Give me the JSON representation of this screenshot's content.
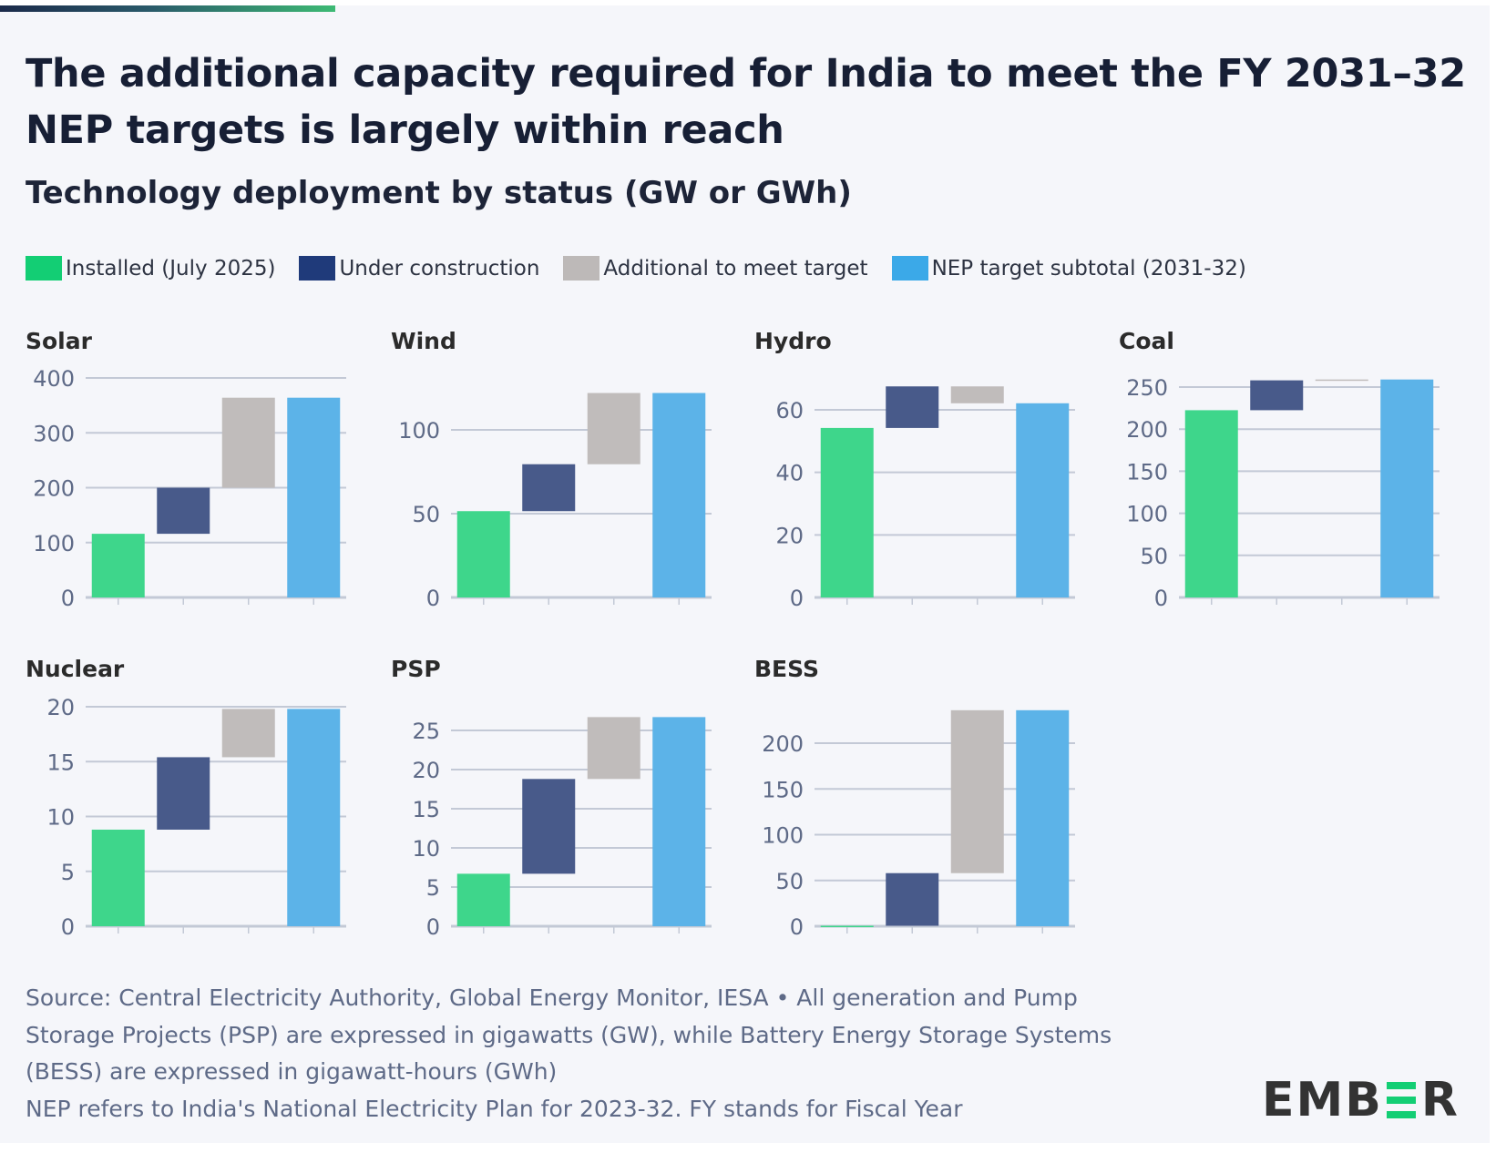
{
  "header": {
    "title": "The additional capacity required for India to meet the FY 2031–32 NEP targets is largely within reach",
    "subtitle": "Technology deployment by status (GW or GWh)"
  },
  "legend": [
    {
      "label": "Installed (July 2025)",
      "color": "#13ce74"
    },
    {
      "label": "Under construction",
      "color": "#1f3a7a"
    },
    {
      "label": "Additional to meet target",
      "color": "#bdb9b8"
    },
    {
      "label": "NEP target subtotal (2031-32)",
      "color": "#3ba9e8"
    }
  ],
  "colors": {
    "installed": "#3ed68b",
    "under_construction": "#485a8a",
    "additional": "#c0bcbb",
    "target": "#5cb3e8",
    "gridline": "#c3c9d6",
    "axis": "#c3c9d6"
  },
  "chart_data": [
    {
      "type": "bar",
      "subtype": "waterfall",
      "title": "Solar",
      "unit": "GW",
      "categories": [
        "Installed (July 2025)",
        "Under construction",
        "Additional to meet target",
        "NEP target subtotal (2031-32)"
      ],
      "installed": 116,
      "under_construction": 84,
      "additional": 164,
      "target": 364,
      "ylim": [
        0,
        400
      ],
      "yticks": [
        0,
        100,
        200,
        300,
        400
      ],
      "grid": true
    },
    {
      "type": "bar",
      "subtype": "waterfall",
      "title": "Wind",
      "unit": "GW",
      "categories": [
        "Installed (July 2025)",
        "Under construction",
        "Additional to meet target",
        "NEP target subtotal (2031-32)"
      ],
      "installed": 51.5,
      "under_construction": 28,
      "additional": 42.5,
      "target": 122,
      "ylim": [
        0,
        130
      ],
      "yticks": [
        0,
        50,
        100
      ],
      "grid": true
    },
    {
      "type": "bar",
      "subtype": "waterfall",
      "title": "Hydro",
      "unit": "GW",
      "categories": [
        "Installed (July 2025)",
        "Under construction",
        "Additional to meet target",
        "NEP target subtotal (2031-32)"
      ],
      "installed": 54.2,
      "under_construction": 13.3,
      "additional": -5.4,
      "target": 62.1,
      "ylim": [
        0,
        70
      ],
      "yticks": [
        0,
        20,
        40,
        60
      ],
      "grid": true
    },
    {
      "type": "bar",
      "subtype": "waterfall",
      "title": "Coal",
      "unit": "GW",
      "categories": [
        "Installed (July 2025)",
        "Under construction",
        "Additional to meet target",
        "NEP target subtotal (2031-32)"
      ],
      "installed": 222.5,
      "under_construction": 35.5,
      "additional": 1,
      "target": 259,
      "ylim": [
        0,
        260
      ],
      "yticks": [
        0,
        50,
        100,
        150,
        200,
        250
      ],
      "grid": true
    },
    {
      "type": "bar",
      "subtype": "waterfall",
      "title": "Nuclear",
      "unit": "GW",
      "categories": [
        "Installed (July 2025)",
        "Under construction",
        "Additional to meet target",
        "NEP target subtotal (2031-32)"
      ],
      "installed": 8.8,
      "under_construction": 6.6,
      "additional": 4.4,
      "target": 19.8,
      "ylim": [
        0,
        20
      ],
      "yticks": [
        0,
        5,
        10,
        15,
        20
      ],
      "grid": true
    },
    {
      "type": "bar",
      "subtype": "waterfall",
      "title": "PSP",
      "unit": "GW",
      "categories": [
        "Installed (July 2025)",
        "Under construction",
        "Additional to meet target",
        "NEP target subtotal (2031-32)"
      ],
      "installed": 6.7,
      "under_construction": 12.1,
      "additional": 7.9,
      "target": 26.7,
      "ylim": [
        0,
        28
      ],
      "yticks": [
        0,
        5,
        10,
        15,
        20,
        25
      ],
      "grid": true
    },
    {
      "type": "bar",
      "subtype": "waterfall",
      "title": "BESS",
      "unit": "GWh",
      "categories": [
        "Installed (July 2025)",
        "Under construction",
        "Additional to meet target",
        "NEP target subtotal (2031-32)"
      ],
      "installed": 0.5,
      "under_construction": 57.5,
      "additional": 178,
      "target": 236,
      "ylim": [
        0,
        240
      ],
      "yticks": [
        0,
        50,
        100,
        150,
        200
      ],
      "grid": true
    }
  ],
  "footer": {
    "lines": [
      "Source: Central Electricity Authority, Global Energy Monitor, IESA • All generation and Pump",
      "Storage Projects (PSP) are expressed in gigawatts (GW), while Battery Energy Storage Systems",
      "(BESS) are expressed in gigawatt-hours (GWh)",
      "NEP refers to India's National Electricity Plan for 2023-32. FY stands for Fiscal Year"
    ]
  },
  "logo": {
    "prefix": "EMB",
    "suffix": "R",
    "name": "EMBER"
  }
}
